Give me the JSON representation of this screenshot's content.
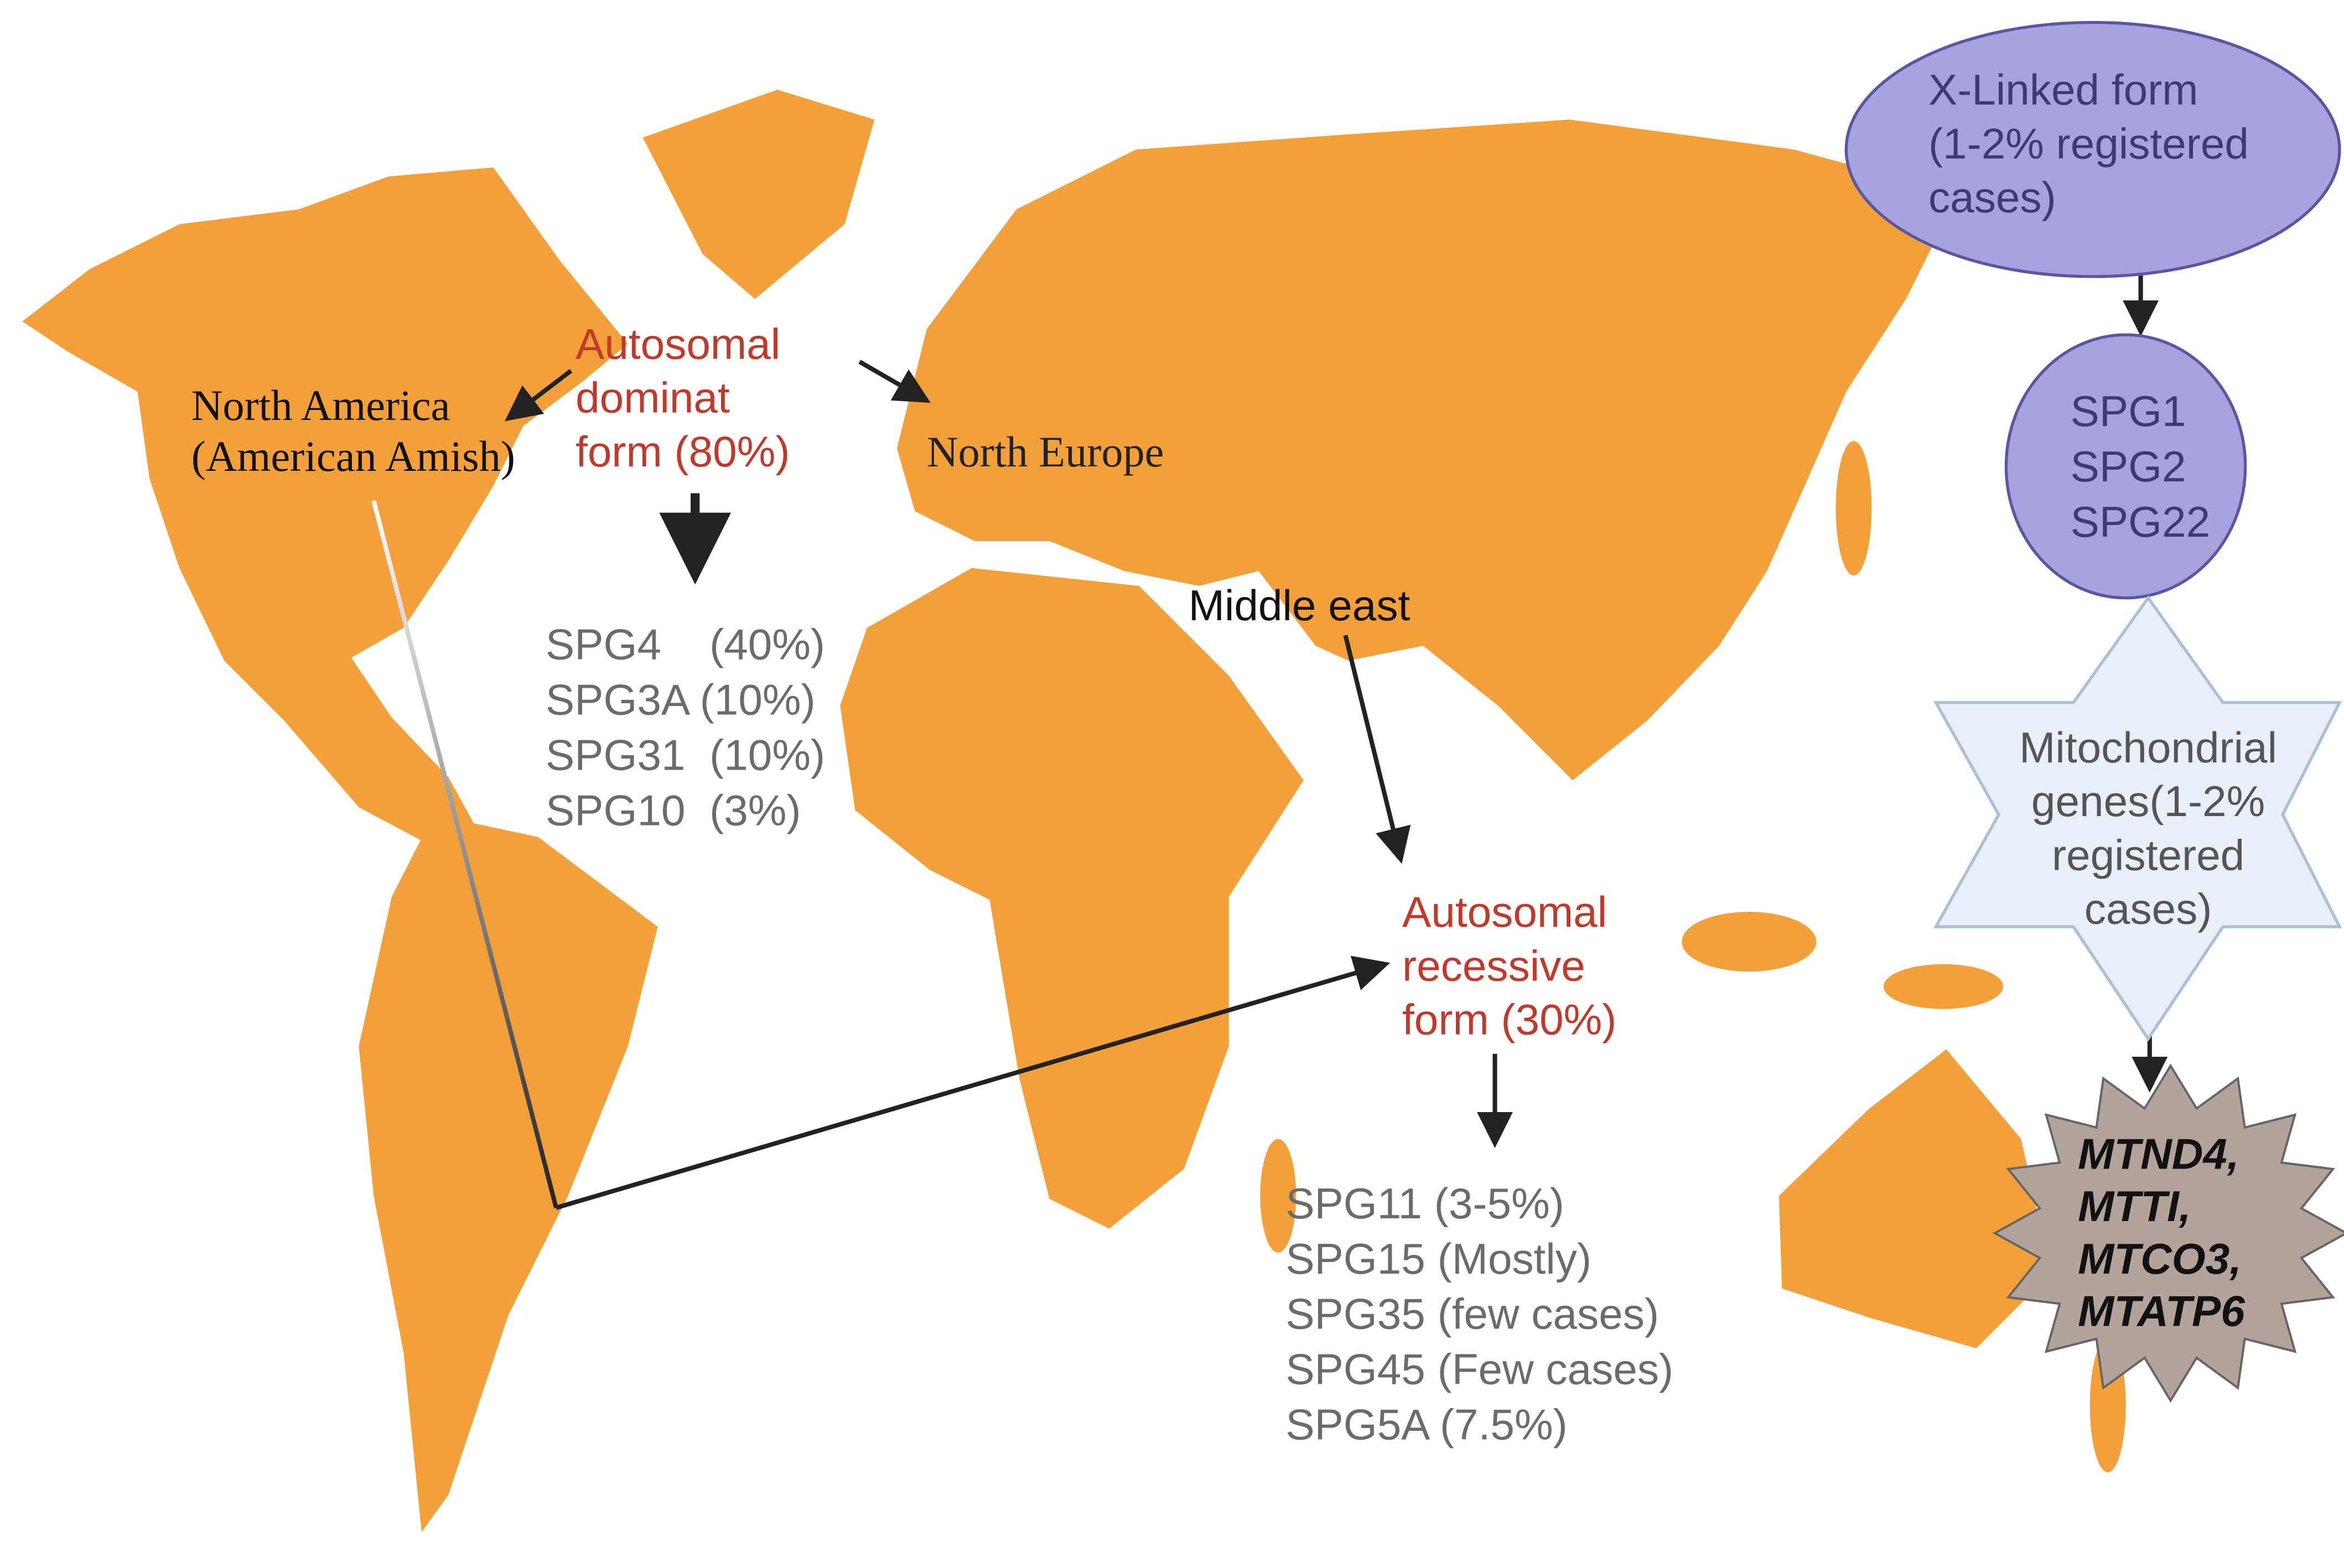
{
  "labels": {
    "north_america": [
      "North America",
      "(American Amish)"
    ],
    "north_europe": "North Europe",
    "middle_east": "Middle east"
  },
  "autosomal_dominant": {
    "title_lines": [
      "Autosomal",
      "dominat",
      "form (80%)"
    ],
    "genes": [
      "SPG4    (40%)",
      "SPG3A (10%)",
      "SPG31  (10%)",
      "SPG10  (3%)"
    ]
  },
  "autosomal_recessive": {
    "title_lines": [
      "Autosomal",
      "recessive",
      "form (30%)"
    ],
    "genes": [
      "SPG11 (3-5%)",
      "SPG15 (Mostly)",
      "SPG35 (few cases)",
      "SPG45 (Few cases)",
      "SPG5A (7.5%)"
    ]
  },
  "x_linked": {
    "title_lines": [
      "X-Linked form",
      "(1-2% registered",
      "cases)"
    ],
    "genes": [
      "SPG1",
      "SPG2",
      "SPG22"
    ]
  },
  "mitochondrial": {
    "title_lines": [
      "Mitochondrial",
      "genes(1-2%",
      "registered",
      "cases)"
    ],
    "genes": [
      "MTND4,",
      "MTTI,",
      "MTCO3,",
      "MTATP6"
    ]
  }
}
